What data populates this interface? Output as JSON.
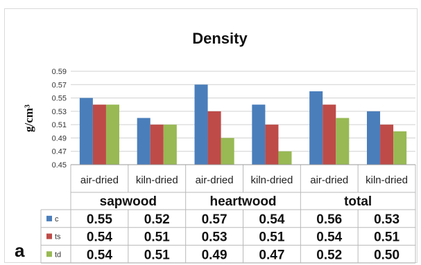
{
  "panel_label": "a",
  "chart_data": {
    "type": "bar",
    "title": "Density",
    "ylabel": "g/cm³",
    "ylim": [
      0.45,
      0.59
    ],
    "yticks": [
      "0.59",
      "0.57",
      "0.55",
      "0.53",
      "0.51",
      "0.49",
      "0.47",
      "0.45"
    ],
    "categories": [
      "air-dried",
      "kiln-dried",
      "air-dried",
      "kiln-dried",
      "air-dried",
      "kiln-dried"
    ],
    "groups": [
      {
        "name": "sapwood",
        "span": 2
      },
      {
        "name": "heartwood",
        "span": 2
      },
      {
        "name": "total",
        "span": 2
      }
    ],
    "series": [
      {
        "name": "c",
        "color": "#4a7ebb",
        "values": [
          0.55,
          0.52,
          0.57,
          0.54,
          0.56,
          0.53
        ],
        "labels": [
          "0.55",
          "0.52",
          "0.57",
          "0.54",
          "0.56",
          "0.53"
        ]
      },
      {
        "name": "ts",
        "color": "#be4b48",
        "values": [
          0.54,
          0.51,
          0.53,
          0.51,
          0.54,
          0.51
        ],
        "labels": [
          "0.54",
          "0.51",
          "0.53",
          "0.51",
          "0.54",
          "0.51"
        ]
      },
      {
        "name": "td",
        "color": "#98b954",
        "values": [
          0.54,
          0.51,
          0.49,
          0.47,
          0.52,
          0.5
        ],
        "labels": [
          "0.54",
          "0.51",
          "0.49",
          "0.47",
          "0.52",
          "0.50"
        ]
      }
    ]
  }
}
